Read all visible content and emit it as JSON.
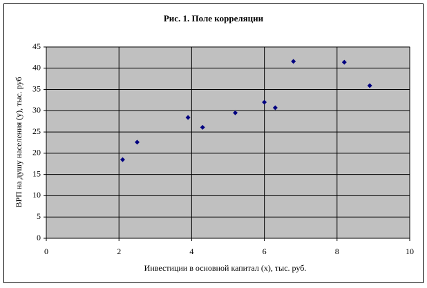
{
  "chart_data": {
    "type": "scatter",
    "title": "Рис. 1. Поле корреляции",
    "x_label": "Инвестиции в основной капитал (х), тыс. руб.",
    "y_label": "ВРП на душу населения (у), тыс. руб",
    "x": [
      2.1,
      2.5,
      3.9,
      4.3,
      5.2,
      6.0,
      6.3,
      6.8,
      8.2,
      8.9
    ],
    "values": [
      18.5,
      22.6,
      28.4,
      26.1,
      29.5,
      32,
      30.7,
      41.6,
      41.4,
      35.9
    ],
    "color": "#000080",
    "xlim": [
      0,
      10
    ],
    "xticks": [
      0,
      2,
      4,
      6,
      8,
      10
    ],
    "ylim": [
      0,
      45
    ],
    "yticks": [
      0,
      5,
      10,
      15,
      20,
      25,
      30,
      35,
      40,
      45
    ],
    "grid": true
  }
}
